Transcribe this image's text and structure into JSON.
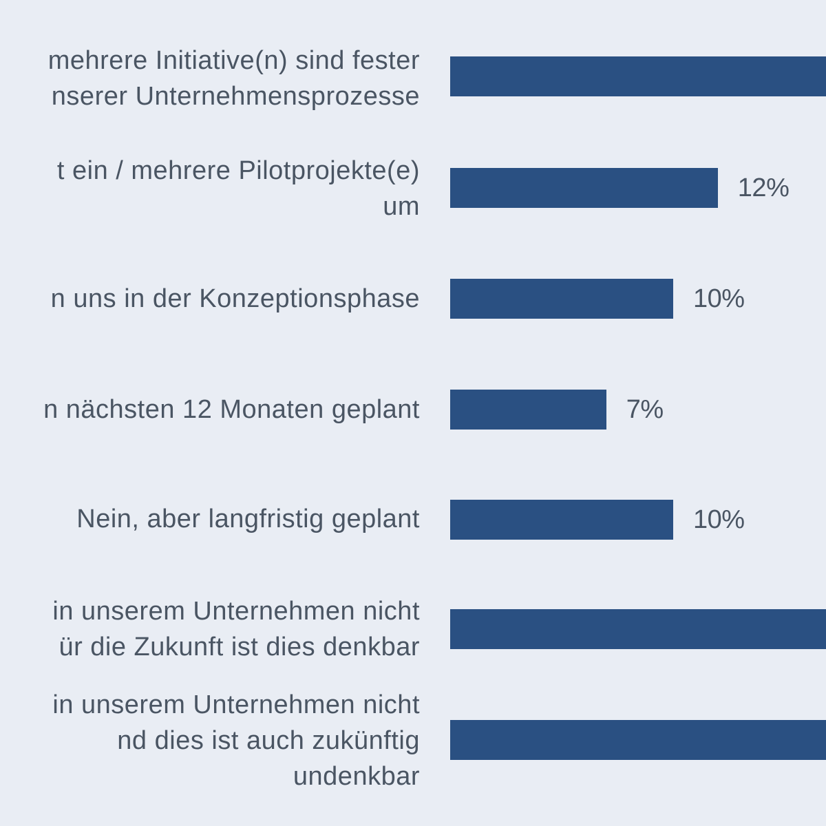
{
  "colors": {
    "background": "#e9edf4",
    "bar": "#2a5082",
    "text": "#4a5563"
  },
  "chart_data": {
    "type": "bar",
    "orientation": "horizontal",
    "categories": [
      "mehrere Initiative(n) sind fester\nnserer Unternehmensprozesse",
      "t ein / mehrere Pilotprojekte(e)\num",
      "n uns in der Konzeptionsphase",
      "n nächsten 12 Monaten geplant",
      "Nein, aber langfristig geplant",
      "in unserem Unternehmen nicht\nür die Zukunft ist dies denkbar",
      "in unserem Unternehmen nicht\nnd dies ist auch zukünftig\nundenkbar"
    ],
    "values": [
      null,
      12,
      10,
      7,
      10,
      null,
      null
    ],
    "value_labels": [
      "",
      "12%",
      "10%",
      "7%",
      "10%",
      "",
      ""
    ],
    "xlabel": "",
    "ylabel": "",
    "unit": "%",
    "grid": false
  }
}
